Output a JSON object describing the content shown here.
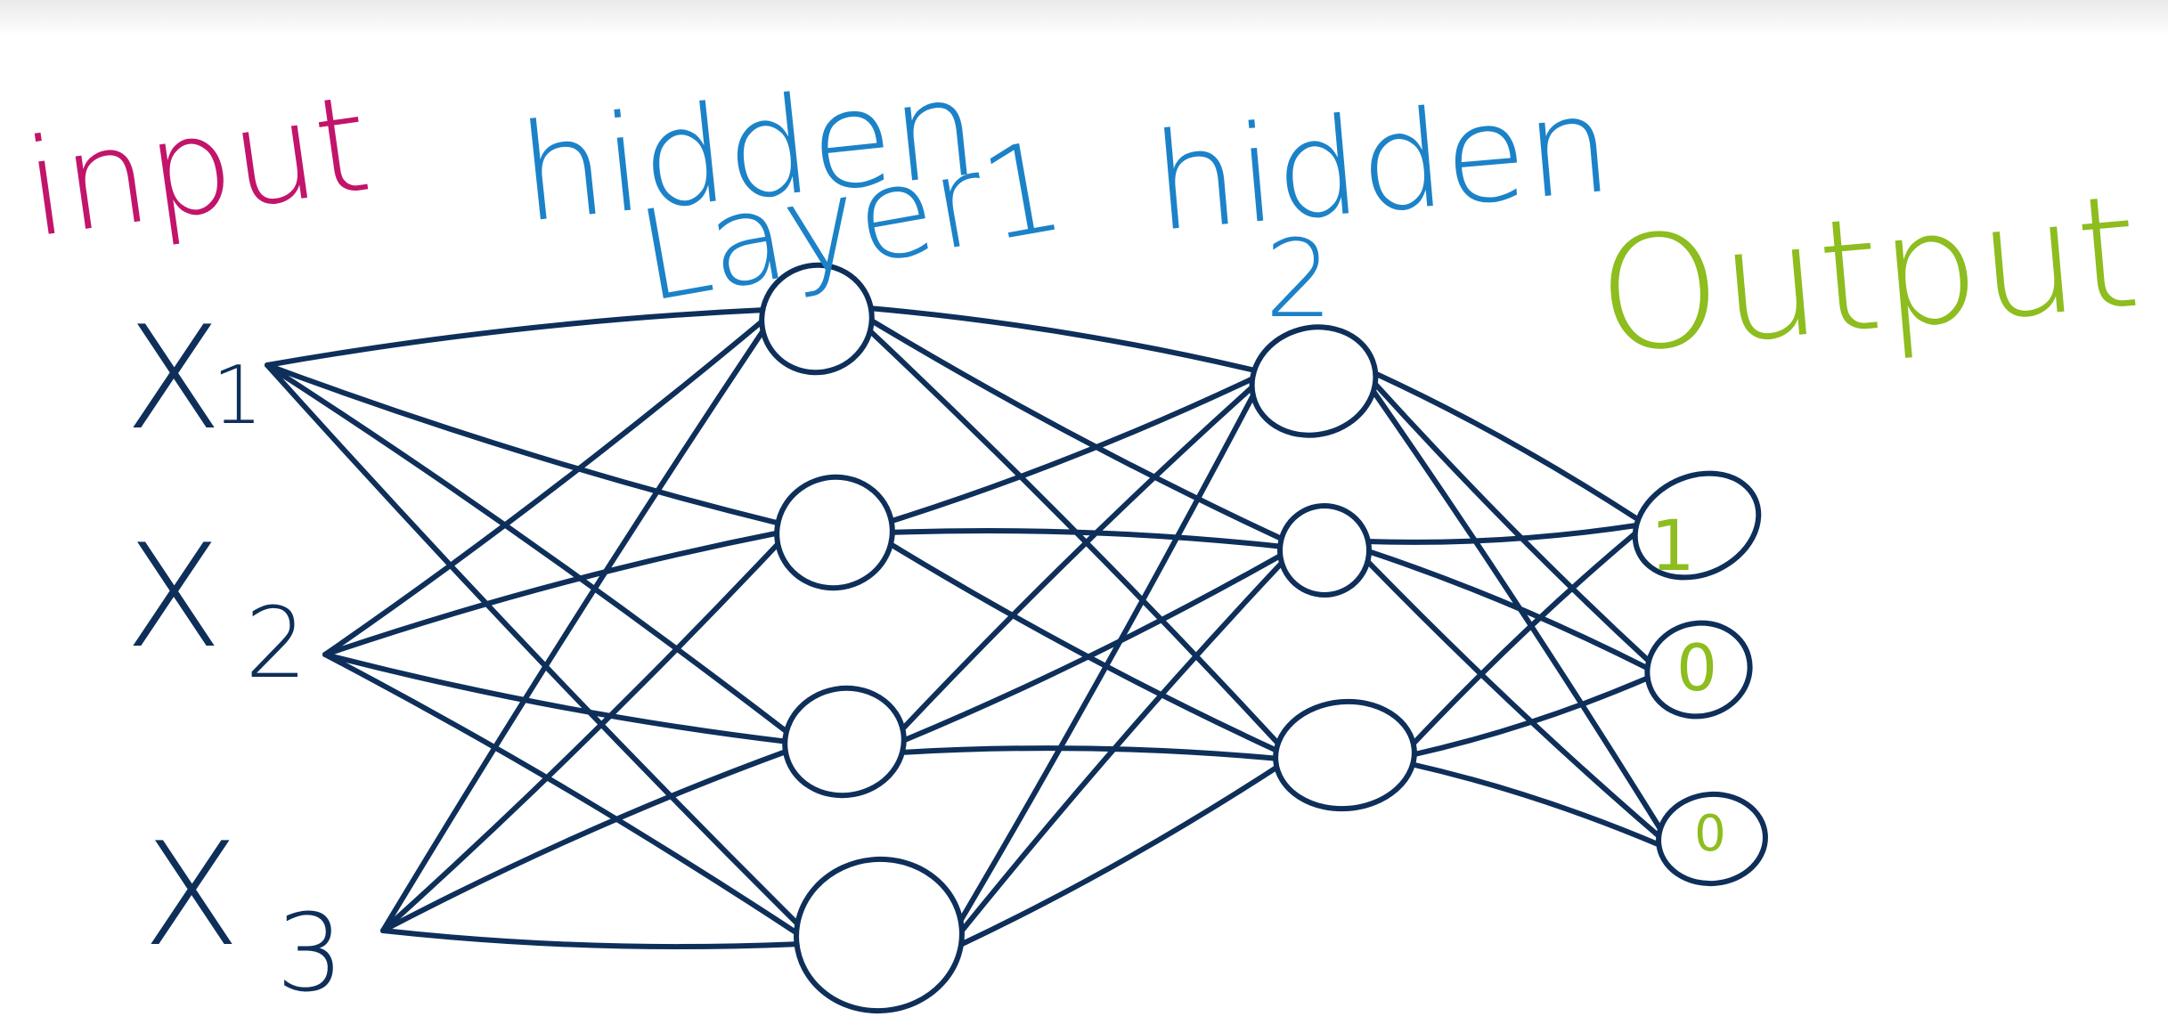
{
  "colors": {
    "ink": "#0e2f5a",
    "input_label": "#c2146a",
    "hidden_label": "#1c82c8",
    "output_label": "#8dbd1e",
    "background": "#ffffff"
  },
  "labels": {
    "input": "input",
    "hidden1_line1": "hidden",
    "hidden1_line2": "Layer1",
    "hidden2_line1": "hidden",
    "hidden2_line2": "2",
    "output": "Output"
  },
  "inputs": [
    {
      "letter": "X",
      "subscript": "1"
    },
    {
      "letter": "X",
      "subscript": "2"
    },
    {
      "letter": "X",
      "subscript": "3"
    }
  ],
  "network": {
    "hidden1_nodes": 4,
    "hidden2_nodes": 3,
    "output_nodes": 3
  },
  "output_values": [
    "1",
    "0",
    "0"
  ]
}
